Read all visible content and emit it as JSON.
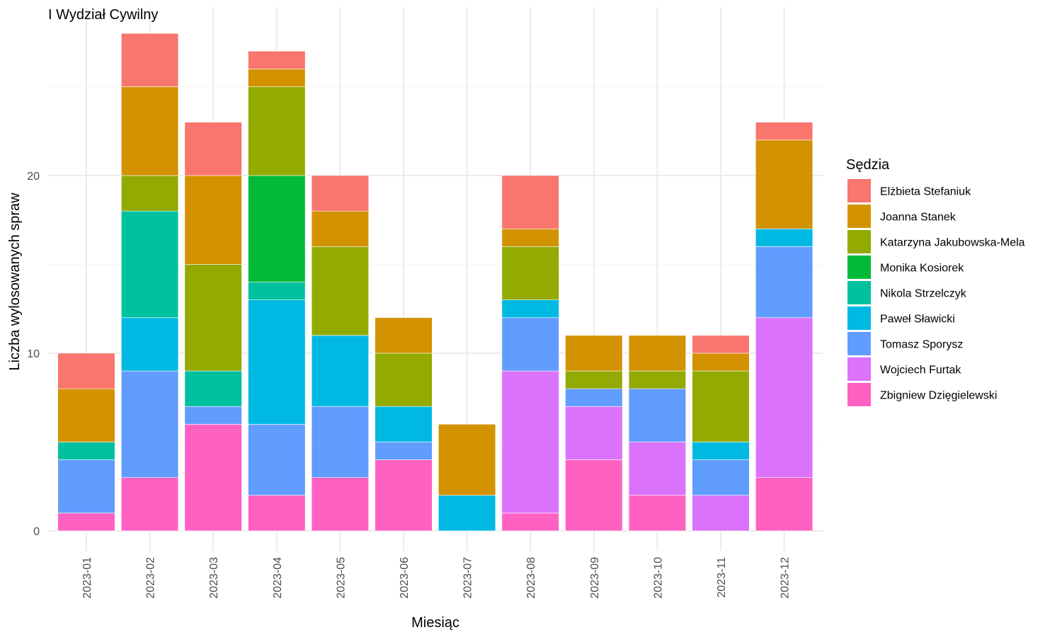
{
  "chart_data": {
    "type": "bar",
    "stacked": true,
    "title": "I Wydział Cywilny",
    "xlabel": "Miesiąc",
    "ylabel": "Liczba wylosowanych spraw",
    "ylim": [
      0,
      28
    ],
    "y_ticks": [
      0,
      10,
      20
    ],
    "grid": true,
    "legend_title": "Sędzia",
    "legend_position": "right",
    "categories": [
      "2023-01",
      "2023-02",
      "2023-03",
      "2023-04",
      "2023-05",
      "2023-06",
      "2023-07",
      "2023-08",
      "2023-09",
      "2023-10",
      "2023-11",
      "2023-12"
    ],
    "series": [
      {
        "name": "Elżbieta Stefaniuk",
        "color": "#F8766D",
        "values": [
          2,
          3,
          3,
          1,
          2,
          0,
          0,
          3,
          0,
          0,
          1,
          1
        ]
      },
      {
        "name": "Joanna Stanek",
        "color": "#D39200",
        "values": [
          3,
          5,
          5,
          1,
          2,
          2,
          4,
          1,
          2,
          2,
          1,
          5
        ]
      },
      {
        "name": "Katarzyna Jakubowska-Mela",
        "color": "#93AA00",
        "values": [
          0,
          2,
          6,
          5,
          5,
          3,
          0,
          3,
          1,
          1,
          4,
          0
        ]
      },
      {
        "name": "Monika Kosiorek",
        "color": "#00BA38",
        "values": [
          0,
          0,
          0,
          6,
          0,
          0,
          0,
          0,
          0,
          0,
          0,
          0
        ]
      },
      {
        "name": "Nikola Strzelczyk",
        "color": "#00C19F",
        "values": [
          1,
          6,
          2,
          1,
          0,
          0,
          0,
          0,
          0,
          0,
          0,
          0
        ]
      },
      {
        "name": "Paweł Sławicki",
        "color": "#00B9E3",
        "values": [
          0,
          3,
          0,
          7,
          4,
          2,
          2,
          1,
          0,
          0,
          1,
          1
        ]
      },
      {
        "name": "Tomasz Sporysz",
        "color": "#619CFF",
        "values": [
          3,
          6,
          1,
          4,
          4,
          1,
          0,
          3,
          1,
          3,
          2,
          4
        ]
      },
      {
        "name": "Wojciech Furtak",
        "color": "#DB72FB",
        "values": [
          0,
          0,
          0,
          0,
          0,
          0,
          0,
          8,
          3,
          3,
          2,
          9
        ]
      },
      {
        "name": "Zbigniew Dzięgielewski",
        "color": "#FF61C3",
        "values": [
          1,
          3,
          6,
          2,
          3,
          4,
          0,
          1,
          4,
          2,
          0,
          3
        ]
      }
    ]
  }
}
